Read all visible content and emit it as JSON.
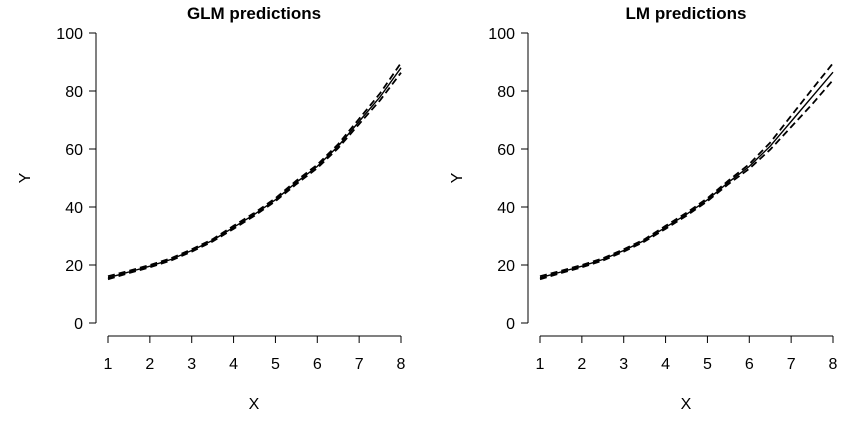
{
  "chart_data": [
    {
      "type": "line",
      "title": "GLM predictions",
      "xlabel": "X",
      "ylabel": "Y",
      "xlim": [
        1,
        8
      ],
      "ylim": [
        0,
        100
      ],
      "xticks": [
        1,
        2,
        3,
        4,
        5,
        6,
        7,
        8
      ],
      "yticks": [
        0,
        20,
        40,
        60,
        80,
        100
      ],
      "x": [
        1,
        1.5,
        2,
        2.5,
        3,
        3.5,
        4,
        4.5,
        5,
        5.5,
        6,
        6.5,
        7,
        7.5,
        8
      ],
      "series": [
        {
          "style": "solid",
          "values": [
            15.6,
            17.6,
            19.6,
            21.9,
            25.0,
            28.5,
            33.0,
            37.5,
            42.5,
            48.5,
            54.0,
            61.0,
            69.5,
            78.0,
            88.0
          ]
        },
        {
          "style": "dashed",
          "values": [
            15.1,
            17.2,
            19.2,
            21.5,
            24.6,
            28.1,
            32.5,
            37.0,
            42.0,
            47.9,
            53.4,
            60.3,
            68.6,
            76.8,
            86.3
          ]
        },
        {
          "style": "dashed",
          "values": [
            16.1,
            18.0,
            20.0,
            22.3,
            25.4,
            28.9,
            33.5,
            38.0,
            43.0,
            49.1,
            54.6,
            61.7,
            70.4,
            79.2,
            89.7
          ]
        }
      ]
    },
    {
      "type": "line",
      "title": "LM predictions",
      "xlabel": "X",
      "ylabel": "Y",
      "xlim": [
        1,
        8
      ],
      "ylim": [
        0,
        100
      ],
      "xticks": [
        1,
        2,
        3,
        4,
        5,
        6,
        7,
        8
      ],
      "yticks": [
        0,
        20,
        40,
        60,
        80,
        100
      ],
      "x": [
        1,
        1.5,
        2,
        2.5,
        3,
        3.5,
        4,
        4.5,
        5,
        5.5,
        6,
        6.5,
        7,
        7.5,
        8
      ],
      "series": [
        {
          "style": "solid",
          "values": [
            15.6,
            17.6,
            19.6,
            21.9,
            25.0,
            28.5,
            33.0,
            37.5,
            42.5,
            48.5,
            54.0,
            61.0,
            69.5,
            78.0,
            86.5
          ]
        },
        {
          "style": "dashed",
          "values": [
            15.1,
            17.2,
            19.2,
            21.5,
            24.6,
            28.1,
            32.5,
            37.0,
            42.0,
            47.9,
            53.2,
            59.8,
            67.6,
            75.4,
            83.8
          ]
        },
        {
          "style": "dashed",
          "values": [
            16.1,
            18.0,
            20.0,
            22.3,
            25.4,
            28.9,
            33.5,
            38.0,
            43.0,
            49.1,
            54.8,
            62.2,
            71.4,
            80.6,
            89.6
          ]
        }
      ]
    }
  ]
}
